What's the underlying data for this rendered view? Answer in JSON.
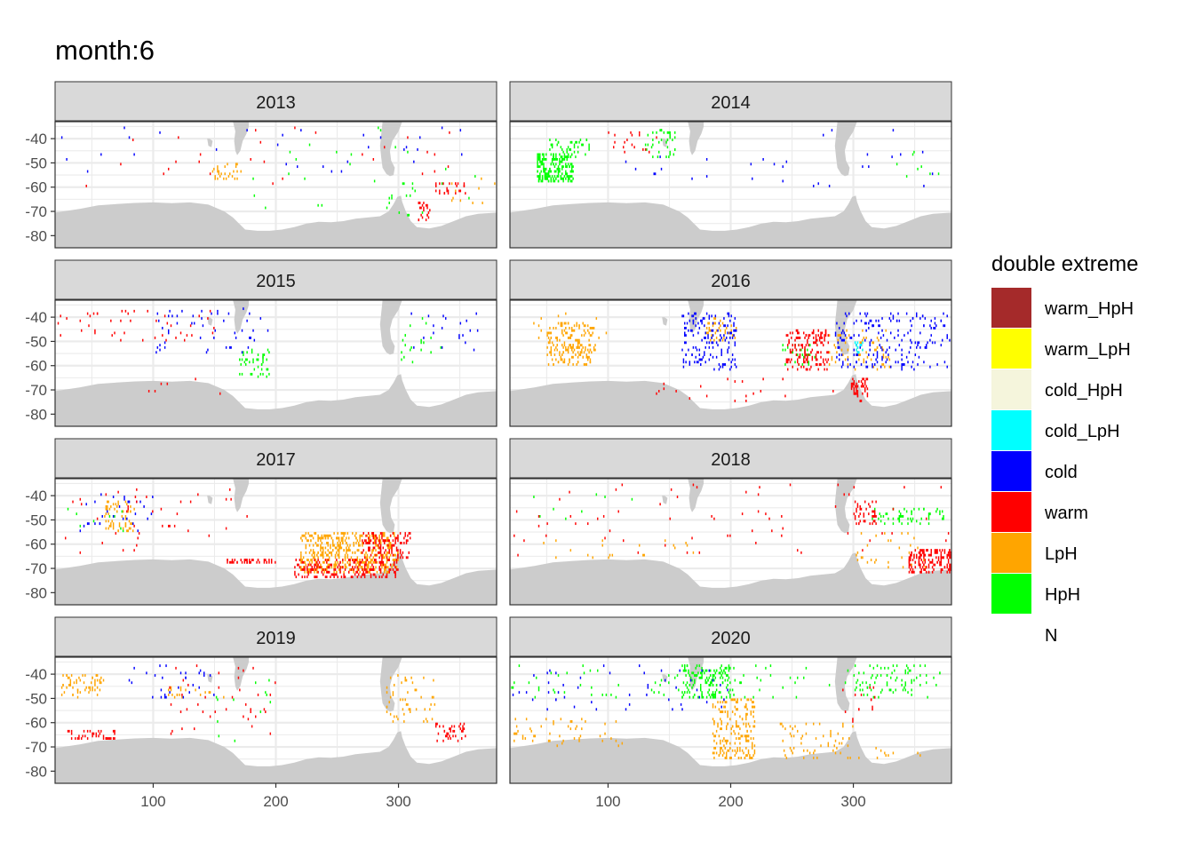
{
  "chart_data": {
    "type": "heatmap",
    "title": "month:6",
    "xlabel": "",
    "ylabel": "",
    "x_ticks": [
      100,
      200,
      300
    ],
    "y_ticks": [
      -40,
      -50,
      -60,
      -70,
      -80
    ],
    "xlim": [
      20,
      380
    ],
    "ylim": [
      -85,
      -33
    ],
    "grid": true,
    "legend_position": "right",
    "legend": {
      "title": "double extreme",
      "entries": [
        {
          "label": "warm_HpH",
          "color": "#A52A2A"
        },
        {
          "label": "warm_LpH",
          "color": "#FFFF00"
        },
        {
          "label": "cold_HpH",
          "color": "#F5F5DC"
        },
        {
          "label": "cold_LpH",
          "color": "#00FFFF"
        },
        {
          "label": "cold",
          "color": "#0000FF"
        },
        {
          "label": "warm",
          "color": "#FF0000"
        },
        {
          "label": "LpH",
          "color": "#FFA500"
        },
        {
          "label": "HpH",
          "color": "#00FF00"
        },
        {
          "label": "N",
          "color": "#FFFFFF"
        }
      ]
    },
    "panels": [
      {
        "year": "2013",
        "clusters": [
          {
            "class": "cold",
            "lon": [
              20,
              370
            ],
            "lat": [
              -55,
              -35
            ],
            "n": 30
          },
          {
            "class": "warm",
            "lon": [
              20,
              370
            ],
            "lat": [
              -60,
              -35
            ],
            "n": 28
          },
          {
            "class": "HpH",
            "lon": [
              140,
              370
            ],
            "lat": [
              -70,
              -35
            ],
            "n": 22
          },
          {
            "class": "LpH",
            "lon": [
              148,
              172
            ],
            "lat": [
              -57,
              -50
            ],
            "n": 28
          },
          {
            "class": "warm",
            "lon": [
              330,
              355
            ],
            "lat": [
              -63,
              -58
            ],
            "n": 26
          },
          {
            "class": "warm",
            "lon": [
              316,
              326
            ],
            "lat": [
              -74,
              -66
            ],
            "n": 22
          },
          {
            "class": "LpH",
            "lon": [
              340,
              380
            ],
            "lat": [
              -68,
              -55
            ],
            "n": 10
          },
          {
            "class": "HpH",
            "lon": [
              290,
              320
            ],
            "lat": [
              -72,
              -58
            ],
            "n": 16
          }
        ]
      },
      {
        "year": "2014",
        "clusters": [
          {
            "class": "HpH",
            "lon": [
              42,
              72
            ],
            "lat": [
              -58,
              -46
            ],
            "n": 200
          },
          {
            "class": "HpH",
            "lon": [
              52,
              85
            ],
            "lat": [
              -48,
              -40
            ],
            "n": 40
          },
          {
            "class": "HpH",
            "lon": [
              130,
              155
            ],
            "lat": [
              -48,
              -36
            ],
            "n": 40
          },
          {
            "class": "warm",
            "lon": [
              100,
              150
            ],
            "lat": [
              -46,
              -37
            ],
            "n": 18
          },
          {
            "class": "cold",
            "lon": [
              100,
              370
            ],
            "lat": [
              -60,
              -36
            ],
            "n": 30
          },
          {
            "class": "HpH",
            "lon": [
              320,
              370
            ],
            "lat": [
              -62,
              -38
            ],
            "n": 8
          }
        ]
      },
      {
        "year": "2015",
        "clusters": [
          {
            "class": "warm",
            "lon": [
              20,
              150
            ],
            "lat": [
              -50,
              -37
            ],
            "n": 45
          },
          {
            "class": "cold",
            "lon": [
              100,
              200
            ],
            "lat": [
              -55,
              -36
            ],
            "n": 50
          },
          {
            "class": "HpH",
            "lon": [
              170,
              195
            ],
            "lat": [
              -65,
              -53
            ],
            "n": 45
          },
          {
            "class": "HpH",
            "lon": [
              300,
              340
            ],
            "lat": [
              -60,
              -40
            ],
            "n": 20
          },
          {
            "class": "cold",
            "lon": [
              300,
              370
            ],
            "lat": [
              -55,
              -36
            ],
            "n": 20
          },
          {
            "class": "warm",
            "lon": [
              80,
              160
            ],
            "lat": [
              -72,
              -65
            ],
            "n": 6
          }
        ]
      },
      {
        "year": "2016",
        "clusters": [
          {
            "class": "LpH",
            "lon": [
              50,
              90
            ],
            "lat": [
              -60,
              -42
            ],
            "n": 180
          },
          {
            "class": "LpH",
            "lon": [
              30,
              100
            ],
            "lat": [
              -50,
              -38
            ],
            "n": 20
          },
          {
            "class": "cold",
            "lon": [
              160,
              205
            ],
            "lat": [
              -62,
              -38
            ],
            "n": 150
          },
          {
            "class": "LpH",
            "lon": [
              180,
              205
            ],
            "lat": [
              -50,
              -40
            ],
            "n": 40
          },
          {
            "class": "warm",
            "lon": [
              245,
              280
            ],
            "lat": [
              -62,
              -45
            ],
            "n": 150
          },
          {
            "class": "LpH",
            "lon": [
              280,
              330
            ],
            "lat": [
              -62,
              -45
            ],
            "n": 70
          },
          {
            "class": "cold",
            "lon": [
              285,
              380
            ],
            "lat": [
              -62,
              -38
            ],
            "n": 200
          },
          {
            "class": "cold_LpH",
            "lon": [
              300,
              308
            ],
            "lat": [
              -55,
              -50
            ],
            "n": 14
          },
          {
            "class": "warm",
            "lon": [
              298,
              312
            ],
            "lat": [
              -75,
              -65
            ],
            "n": 50
          },
          {
            "class": "HpH",
            "lon": [
              240,
              270
            ],
            "lat": [
              -60,
              -50
            ],
            "n": 30
          },
          {
            "class": "warm",
            "lon": [
              130,
              300
            ],
            "lat": [
              -75,
              -65
            ],
            "n": 20
          }
        ]
      },
      {
        "year": "2017",
        "clusters": [
          {
            "class": "LpH",
            "lon": [
              220,
              300
            ],
            "lat": [
              -72,
              -55
            ],
            "n": 500
          },
          {
            "class": "warm",
            "lon": [
              215,
              300
            ],
            "lat": [
              -74,
              -66
            ],
            "n": 200
          },
          {
            "class": "warm",
            "lon": [
              270,
              310
            ],
            "lat": [
              -66,
              -55
            ],
            "n": 120
          },
          {
            "class": "warm",
            "lon": [
              160,
              200
            ],
            "lat": [
              -68,
              -66
            ],
            "n": 40
          },
          {
            "class": "LpH",
            "lon": [
              60,
              85
            ],
            "lat": [
              -55,
              -42
            ],
            "n": 60
          },
          {
            "class": "cold",
            "lon": [
              40,
              100
            ],
            "lat": [
              -55,
              -38
            ],
            "n": 30
          },
          {
            "class": "warm",
            "lon": [
              20,
              180
            ],
            "lat": [
              -64,
              -35
            ],
            "n": 40
          },
          {
            "class": "HpH",
            "lon": [
              20,
              80
            ],
            "lat": [
              -55,
              -45
            ],
            "n": 10
          }
        ]
      },
      {
        "year": "2018",
        "clusters": [
          {
            "class": "warm",
            "lon": [
              20,
              380
            ],
            "lat": [
              -65,
              -35
            ],
            "n": 70
          },
          {
            "class": "warm",
            "lon": [
              345,
              380
            ],
            "lat": [
              -72,
              -62
            ],
            "n": 160
          },
          {
            "class": "warm",
            "lon": [
              300,
              320
            ],
            "lat": [
              -52,
              -42
            ],
            "n": 40
          },
          {
            "class": "HpH",
            "lon": [
              315,
              375
            ],
            "lat": [
              -52,
              -45
            ],
            "n": 60
          },
          {
            "class": "LpH",
            "lon": [
              300,
              360
            ],
            "lat": [
              -70,
              -55
            ],
            "n": 30
          },
          {
            "class": "LpH",
            "lon": [
              40,
              180
            ],
            "lat": [
              -66,
              -58
            ],
            "n": 20
          },
          {
            "class": "HpH",
            "lon": [
              20,
              120
            ],
            "lat": [
              -50,
              -38
            ],
            "n": 8
          }
        ]
      },
      {
        "year": "2019",
        "clusters": [
          {
            "class": "LpH",
            "lon": [
              25,
              60
            ],
            "lat": [
              -50,
              -40
            ],
            "n": 60
          },
          {
            "class": "warm",
            "lon": [
              30,
              70
            ],
            "lat": [
              -67,
              -63
            ],
            "n": 40
          },
          {
            "class": "cold",
            "lon": [
              80,
              150
            ],
            "lat": [
              -50,
              -36
            ],
            "n": 30
          },
          {
            "class": "LpH",
            "lon": [
              110,
              160
            ],
            "lat": [
              -50,
              -45
            ],
            "n": 20
          },
          {
            "class": "warm",
            "lon": [
              100,
              200
            ],
            "lat": [
              -65,
              -36
            ],
            "n": 40
          },
          {
            "class": "LpH",
            "lon": [
              290,
              330
            ],
            "lat": [
              -60,
              -40
            ],
            "n": 50
          },
          {
            "class": "warm",
            "lon": [
              330,
              355
            ],
            "lat": [
              -68,
              -60
            ],
            "n": 40
          },
          {
            "class": "HpH",
            "lon": [
              150,
              200
            ],
            "lat": [
              -70,
              -40
            ],
            "n": 12
          }
        ]
      },
      {
        "year": "2020",
        "clusters": [
          {
            "class": "HpH",
            "lon": [
              160,
              200
            ],
            "lat": [
              -50,
              -36
            ],
            "n": 150
          },
          {
            "class": "HpH",
            "lon": [
              20,
              380
            ],
            "lat": [
              -50,
              -36
            ],
            "n": 100
          },
          {
            "class": "cold",
            "lon": [
              20,
              200
            ],
            "lat": [
              -55,
              -36
            ],
            "n": 50
          },
          {
            "class": "LpH",
            "lon": [
              185,
              220
            ],
            "lat": [
              -75,
              -50
            ],
            "n": 200
          },
          {
            "class": "LpH",
            "lon": [
              20,
              120
            ],
            "lat": [
              -70,
              -58
            ],
            "n": 50
          },
          {
            "class": "LpH",
            "lon": [
              240,
              300
            ],
            "lat": [
              -75,
              -60
            ],
            "n": 60
          },
          {
            "class": "HpH",
            "lon": [
              300,
              360
            ],
            "lat": [
              -50,
              -36
            ],
            "n": 60
          },
          {
            "class": "warm",
            "lon": [
              290,
              320
            ],
            "lat": [
              -60,
              -45
            ],
            "n": 15
          },
          {
            "class": "LpH",
            "lon": [
              300,
              360
            ],
            "lat": [
              -75,
              -70
            ],
            "n": 10
          }
        ]
      }
    ]
  }
}
